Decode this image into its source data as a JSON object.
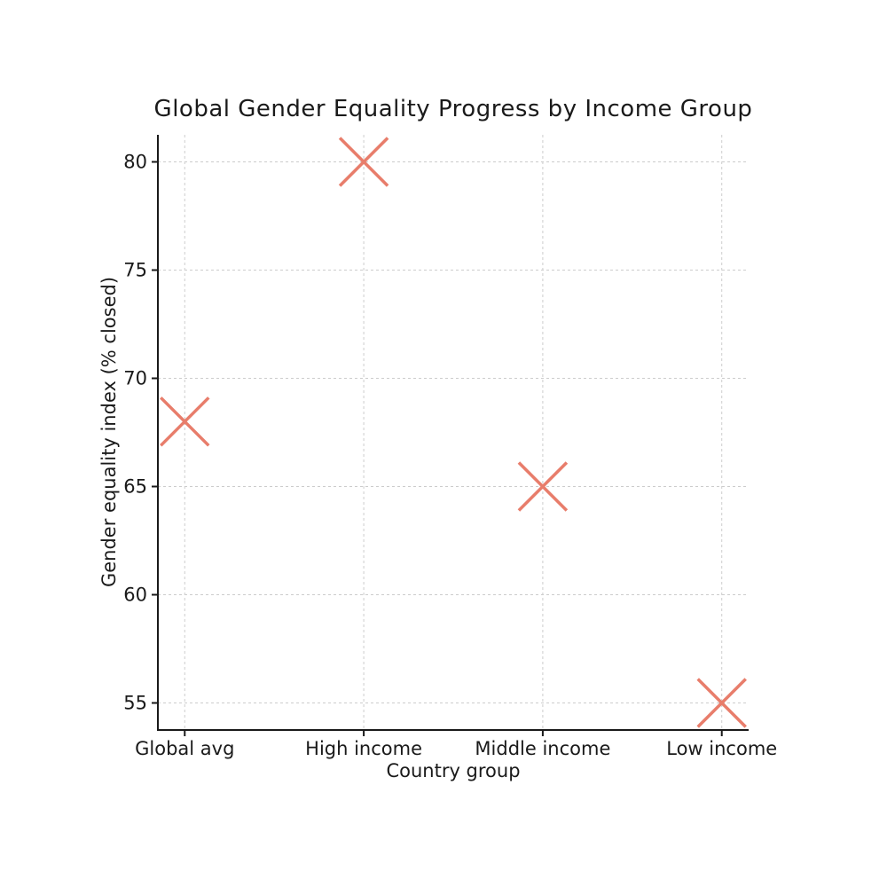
{
  "page": {
    "background_color": "#ffffff"
  },
  "chart_data": {
    "type": "scatter",
    "title": "Global Gender Equality Progress by Income Group",
    "xlabel": "Country group",
    "ylabel": "Gender equality index (% closed)",
    "categories": [
      "Global avg",
      "High income",
      "Middle income",
      "Low income"
    ],
    "series": [
      {
        "name": "Gender equality index",
        "values": [
          68,
          80,
          65,
          55
        ]
      }
    ],
    "yticks": [
      55,
      60,
      65,
      70,
      75,
      80
    ],
    "ylim": [
      53.75,
      81.25
    ],
    "xlim": [
      -0.15,
      3.15
    ],
    "grid": true,
    "grid_style": "dashed",
    "legend": "none",
    "marker": "x",
    "marker_color": "#e87d6b",
    "grid_color": "#cccccc",
    "axis_color": "#1a1a1a",
    "tick_label_color": "#1a1a1a"
  }
}
